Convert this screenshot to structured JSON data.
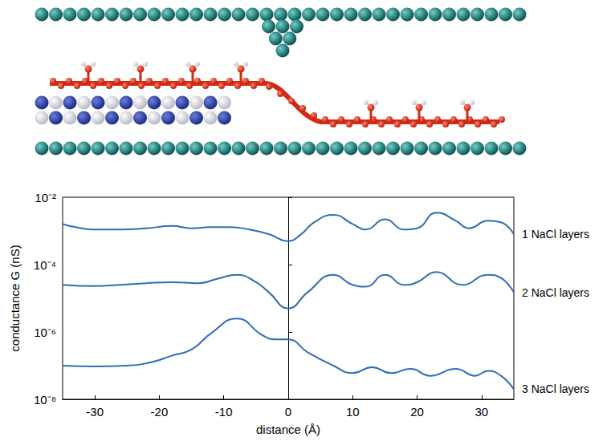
{
  "chart_data": {
    "type": "line",
    "x_label": "distance (Å)",
    "y_label": "conductance G (nS)",
    "log": "y",
    "grid": false,
    "xlim": [
      -35,
      35
    ],
    "xticks": [
      -30,
      -20,
      -10,
      0,
      10,
      20,
      30
    ],
    "ylim": [
      1e-08,
      0.01
    ],
    "yticks": [
      {
        "value": 0.01,
        "label": "10⁻²"
      },
      {
        "value": 0.0001,
        "label": "10⁻⁴"
      },
      {
        "value": 1e-06,
        "label": "10⁻⁶"
      },
      {
        "value": 1e-08,
        "label": "10⁻⁸"
      }
    ],
    "series": [
      {
        "name": "1 NaCl layers",
        "color": "#2f6db5",
        "x": [
          -35,
          -33,
          -30,
          -26,
          -22,
          -18,
          -15,
          -12,
          -9,
          -6,
          -3,
          0,
          2,
          4,
          7,
          10,
          12,
          15,
          18,
          20,
          23,
          26,
          28,
          31,
          33,
          35
        ],
        "values": [
          0.0016,
          0.0013,
          0.0011,
          0.0011,
          0.0012,
          0.0014,
          0.0012,
          0.0013,
          0.0013,
          0.0011,
          0.0008,
          0.0005,
          0.0008,
          0.0018,
          0.003,
          0.0016,
          0.0011,
          0.0022,
          0.0011,
          0.0012,
          0.0035,
          0.002,
          0.0012,
          0.002,
          0.0018,
          0.0008
        ]
      },
      {
        "name": "2 NaCl layers",
        "color": "#2f6db5",
        "x": [
          -35,
          -30,
          -26,
          -22,
          -18,
          -14,
          -11,
          -8,
          -5,
          -3,
          0,
          3,
          7,
          10,
          12,
          15,
          18,
          20,
          23,
          27,
          31,
          33,
          35
        ],
        "values": [
          2.5e-05,
          2.3e-05,
          2.5e-05,
          2.8e-05,
          3e-05,
          2.8e-05,
          3.8e-05,
          5e-05,
          3e-05,
          1.5e-05,
          5e-06,
          1.5e-05,
          5e-05,
          2.5e-05,
          2.2e-05,
          5e-05,
          2.5e-05,
          3e-05,
          6e-05,
          2.5e-05,
          5e-05,
          4e-05,
          1.5e-05
        ]
      },
      {
        "name": "3 NaCl layers",
        "color": "#2f6db5",
        "x": [
          -35,
          -30,
          -25,
          -21,
          -18,
          -15,
          -12,
          -8,
          -4,
          -2,
          0,
          3,
          7,
          10,
          13,
          16,
          19,
          22,
          26,
          29,
          31,
          33,
          35
        ],
        "values": [
          1e-07,
          9.5e-08,
          1e-07,
          1.3e-07,
          2e-07,
          3e-07,
          9e-07,
          2.5e-06,
          8e-07,
          6e-07,
          6e-07,
          2.5e-07,
          1e-07,
          6e-08,
          9e-08,
          6e-08,
          8e-08,
          5e-08,
          8e-08,
          5e-08,
          7e-08,
          5e-08,
          2e-08
        ]
      }
    ]
  }
}
